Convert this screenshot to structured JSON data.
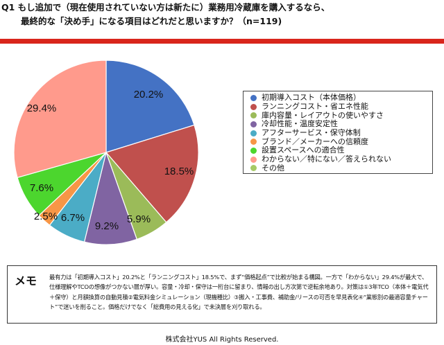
{
  "title": {
    "line1": "Q1 もし追加で（現在使用されていない方は新たに）業務用冷蔵庫を購入するなら、",
    "line2": "最終的な「決め手」になる項目はどれだと思いますか？（n=119)"
  },
  "chart_data": {
    "type": "pie",
    "categories": [
      "初期導入コスト（本体価格）",
      "ランニングコスト・省エネ性能",
      "庫内容量・レイアウトの使いやすさ",
      "冷却性能・温度安定性",
      "アフターサービス・保守体制",
      "ブランド／メーカーへの信頼度",
      "設置スペースへの適合性",
      "わからない／特にない／答えられない",
      "その他"
    ],
    "values": [
      20.2,
      18.5,
      5.9,
      9.2,
      6.7,
      2.5,
      7.6,
      29.4,
      0
    ],
    "labels": [
      "20.2%",
      "18.5%",
      "5.9%",
      "9.2%",
      "6.7%",
      "2.5%",
      "7.6%",
      "29.4%",
      ""
    ],
    "colors": [
      "#4472c4",
      "#c0504d",
      "#9bbb59",
      "#8064a2",
      "#4bacc6",
      "#f79646",
      "#4cd62e",
      "#ff9a8c",
      "#a6c965"
    ],
    "legend_position": "right"
  },
  "memo": {
    "title": "メモ",
    "text": "最有力は「初期導入コスト」20.2%と「ランニングコスト」18.5%で、まず“価格起点”で比較が始まる構図。一方で「わからない」29.4%が最大で、仕様理解やTCOの想像がつかない層が厚い。容量・冷却・保守は一桁台に留まり、情報の出し方次第で逆転余地あり。対策は①3年TCO（本体＋電気代＋保守）と月額換算の自動見積②電気料金シミュレーション（現機種比）③搬入・工事費、補助金/リースの可否を早見表化④“業態別の最適容量チャート”で迷いを削ること。価格だけでなく「総費用の見える化」で未決層を刈り取れる。"
  },
  "footer": "株式会社YUS All Rights Reserved."
}
